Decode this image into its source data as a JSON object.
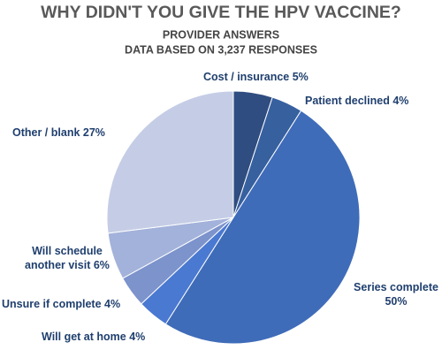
{
  "chart_data": {
    "type": "pie",
    "title": "WHY DIDN'T YOU GIVE THE HPV VACCINE?",
    "subtitle": "PROVIDER ANSWERS",
    "note": "DATA BASED ON 3,237 RESPONSES",
    "categories": [
      "Cost / insurance",
      "Patient declined",
      "Series complete",
      "Will get at home",
      "Unsure if complete",
      "Will schedule another visit",
      "Other / blank"
    ],
    "values": [
      5,
      4,
      50,
      4,
      4,
      6,
      27
    ],
    "value_labels": [
      "5%",
      "4%",
      "50%",
      "4%",
      "4%",
      "6%",
      "27%"
    ],
    "colors": [
      "#2f4d80",
      "#37609f",
      "#3f6cb9",
      "#4a79d2",
      "#7c93cc",
      "#a3b2da",
      "#c5cde6"
    ]
  }
}
